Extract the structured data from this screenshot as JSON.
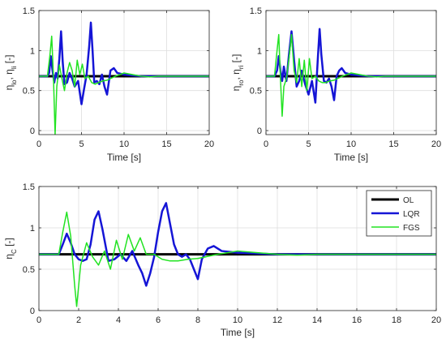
{
  "colors": {
    "OL": "#000000",
    "LQR": "#1515d6",
    "FGS": "#22e322",
    "grid": "#dedede",
    "axis": "#262626"
  },
  "chart_data": [
    {
      "type": "line",
      "id": "front-left",
      "xlabel": "Time [s]",
      "ylabel": {
        "base1": "η",
        "sub1": "lo",
        "sep": ", ",
        "base2": "η",
        "sub2": "li",
        "unit": " [-]"
      },
      "xlim": [
        0,
        20
      ],
      "ylim": [
        -0.05,
        1.5
      ],
      "xticks": [
        0,
        5,
        10,
        15,
        20
      ],
      "yticks": [
        0,
        0.5,
        1,
        1.5
      ],
      "xtick_labels": [
        "0",
        "5",
        "10",
        "15",
        "20"
      ],
      "ytick_labels": [
        "0",
        "0.5",
        "1",
        "1.5"
      ],
      "grid": true,
      "series": [
        {
          "name": "OL",
          "color": "#000000",
          "width": 3,
          "x": [
            0,
            20
          ],
          "y": [
            0.68,
            0.68
          ]
        },
        {
          "name": "LQR",
          "color": "#1515d6",
          "width": 2.5,
          "x": [
            0,
            1.0,
            1.2,
            1.4,
            1.6,
            1.8,
            2.0,
            2.2,
            2.4,
            2.6,
            2.8,
            3.0,
            3.3,
            3.6,
            3.9,
            4.2,
            4.6,
            5.0,
            5.3,
            5.6,
            5.9,
            6.1,
            6.3,
            6.5,
            6.8,
            7.1,
            7.4,
            7.7,
            8.0,
            8.4,
            8.8,
            9.2,
            10,
            11,
            12,
            14,
            20
          ],
          "y": [
            0.68,
            0.68,
            0.72,
            0.93,
            0.75,
            0.6,
            0.72,
            0.65,
            0.9,
            1.24,
            0.85,
            0.58,
            0.6,
            0.72,
            0.65,
            0.55,
            0.62,
            0.33,
            0.52,
            0.7,
            1.05,
            1.35,
            1.0,
            0.6,
            0.62,
            0.58,
            0.7,
            0.55,
            0.45,
            0.75,
            0.78,
            0.72,
            0.7,
            0.69,
            0.68,
            0.68,
            0.68
          ]
        },
        {
          "name": "FGS",
          "color": "#22e322",
          "width": 1.5,
          "x": [
            0,
            1.0,
            1.3,
            1.5,
            1.7,
            1.9,
            2.1,
            2.4,
            2.7,
            3.0,
            3.3,
            3.6,
            3.9,
            4.2,
            4.5,
            4.8,
            5.1,
            5.4,
            5.8,
            6.2,
            6.6,
            7.0,
            7.5,
            8.0,
            9.0,
            10.0,
            11.0,
            12.0,
            13.0,
            14,
            20
          ],
          "y": [
            0.68,
            0.68,
            0.95,
            1.18,
            0.7,
            -0.05,
            0.55,
            0.82,
            0.65,
            0.5,
            0.72,
            0.85,
            0.75,
            0.55,
            0.88,
            0.7,
            0.83,
            0.65,
            0.68,
            0.6,
            0.58,
            0.6,
            0.62,
            0.63,
            0.68,
            0.72,
            0.7,
            0.68,
            0.67,
            0.68,
            0.68
          ]
        }
      ]
    },
    {
      "type": "line",
      "id": "front-right",
      "xlabel": "Time [s]",
      "ylabel": {
        "base1": "η",
        "sub1": "ro",
        "sep": ", ",
        "base2": "η",
        "sub2": "ri",
        "unit": " [-]"
      },
      "xlim": [
        0,
        20
      ],
      "ylim": [
        -0.05,
        1.5
      ],
      "xticks": [
        0,
        5,
        10,
        15,
        20
      ],
      "yticks": [
        0,
        0.5,
        1,
        1.5
      ],
      "xtick_labels": [
        "0",
        "5",
        "10",
        "15",
        "20"
      ],
      "ytick_labels": [
        "0",
        "0.5",
        "1",
        "1.5"
      ],
      "grid": true,
      "series": [
        {
          "name": "OL",
          "color": "#000000",
          "width": 3,
          "x": [
            0,
            20
          ],
          "y": [
            0.68,
            0.68
          ]
        },
        {
          "name": "LQR",
          "color": "#1515d6",
          "width": 2.5,
          "x": [
            0,
            1.0,
            1.3,
            1.5,
            1.7,
            1.9,
            2.1,
            2.4,
            2.7,
            3.0,
            3.3,
            3.6,
            3.9,
            4.2,
            4.6,
            5.0,
            5.4,
            5.8,
            6.1,
            6.3,
            6.5,
            6.8,
            7.1,
            7.4,
            7.7,
            8.0,
            8.3,
            8.6,
            8.9,
            9.3,
            10,
            11,
            12,
            14,
            20
          ],
          "y": [
            0.68,
            0.68,
            0.75,
            0.93,
            0.75,
            0.62,
            0.8,
            0.62,
            0.95,
            1.24,
            0.88,
            0.55,
            0.62,
            0.75,
            0.58,
            0.45,
            0.62,
            0.35,
            0.92,
            1.27,
            0.95,
            0.62,
            0.6,
            0.65,
            0.55,
            0.38,
            0.68,
            0.75,
            0.78,
            0.72,
            0.7,
            0.69,
            0.68,
            0.68,
            0.68
          ]
        },
        {
          "name": "FGS",
          "color": "#22e322",
          "width": 1.5,
          "x": [
            0,
            1.0,
            1.3,
            1.5,
            1.7,
            1.9,
            2.1,
            2.4,
            2.7,
            3.0,
            3.3,
            3.6,
            3.9,
            4.2,
            4.5,
            4.8,
            5.1,
            5.4,
            5.8,
            6.2,
            6.6,
            7.0,
            7.5,
            8.0,
            9.0,
            10.0,
            11.0,
            12.0,
            13.0,
            14,
            20
          ],
          "y": [
            0.68,
            0.68,
            1.0,
            1.2,
            0.65,
            0.18,
            0.55,
            0.65,
            0.9,
            1.2,
            0.75,
            0.6,
            0.9,
            0.55,
            0.88,
            0.5,
            0.9,
            0.65,
            0.68,
            0.62,
            0.6,
            0.6,
            0.62,
            0.63,
            0.68,
            0.72,
            0.7,
            0.68,
            0.67,
            0.68,
            0.68
          ]
        }
      ]
    },
    {
      "type": "line",
      "id": "centre",
      "xlabel": "Time [s]",
      "ylabel": {
        "base1": "η",
        "sub1": "C",
        "sep": "",
        "base2": "",
        "sub2": "",
        "unit": " [-]"
      },
      "xlim": [
        0,
        20
      ],
      "ylim": [
        0,
        1.5
      ],
      "xticks": [
        0,
        2,
        4,
        6,
        8,
        10,
        12,
        14,
        16,
        18,
        20
      ],
      "yticks": [
        0,
        0.5,
        1,
        1.5
      ],
      "xtick_labels": [
        "0",
        "2",
        "4",
        "6",
        "8",
        "10",
        "12",
        "14",
        "16",
        "18",
        "20"
      ],
      "ytick_labels": [
        "0",
        "0.5",
        "1",
        "1.5"
      ],
      "grid": true,
      "legend": {
        "placement": "top-right",
        "entries": [
          "OL",
          "LQR",
          "FGS"
        ]
      },
      "series": [
        {
          "name": "OL",
          "color": "#000000",
          "width": 3,
          "x": [
            0,
            20
          ],
          "y": [
            0.68,
            0.68
          ]
        },
        {
          "name": "LQR",
          "color": "#1515d6",
          "width": 2.5,
          "x": [
            0,
            1.0,
            1.2,
            1.4,
            1.6,
            1.8,
            2.0,
            2.2,
            2.4,
            2.6,
            2.8,
            3.0,
            3.2,
            3.5,
            3.8,
            4.1,
            4.4,
            4.7,
            5.0,
            5.2,
            5.4,
            5.6,
            5.8,
            6.0,
            6.2,
            6.4,
            6.6,
            6.8,
            7.0,
            7.2,
            7.4,
            7.6,
            7.8,
            8.0,
            8.2,
            8.5,
            8.8,
            9.2,
            10,
            11,
            12,
            14,
            20
          ],
          "y": [
            0.68,
            0.68,
            0.8,
            0.93,
            0.82,
            0.68,
            0.62,
            0.6,
            0.62,
            0.8,
            1.1,
            1.2,
            0.98,
            0.6,
            0.62,
            0.68,
            0.6,
            0.72,
            0.55,
            0.45,
            0.3,
            0.45,
            0.65,
            0.95,
            1.2,
            1.3,
            1.05,
            0.8,
            0.68,
            0.65,
            0.68,
            0.62,
            0.5,
            0.38,
            0.62,
            0.75,
            0.78,
            0.72,
            0.7,
            0.69,
            0.68,
            0.68,
            0.68
          ]
        },
        {
          "name": "FGS",
          "color": "#22e322",
          "width": 1.5,
          "x": [
            0,
            1.0,
            1.2,
            1.4,
            1.6,
            1.8,
            1.9,
            2.1,
            2.4,
            2.7,
            3.0,
            3.3,
            3.6,
            3.9,
            4.2,
            4.5,
            4.8,
            5.1,
            5.4,
            5.8,
            6.2,
            6.6,
            7.0,
            7.5,
            8.0,
            9.0,
            10.0,
            11.0,
            12.0,
            13.0,
            14,
            20
          ],
          "y": [
            0.68,
            0.68,
            0.95,
            1.19,
            0.9,
            0.3,
            0.05,
            0.55,
            0.82,
            0.65,
            0.55,
            0.72,
            0.5,
            0.85,
            0.62,
            0.92,
            0.72,
            0.88,
            0.68,
            0.68,
            0.62,
            0.6,
            0.6,
            0.62,
            0.63,
            0.68,
            0.72,
            0.7,
            0.68,
            0.67,
            0.68,
            0.68
          ]
        }
      ]
    }
  ]
}
